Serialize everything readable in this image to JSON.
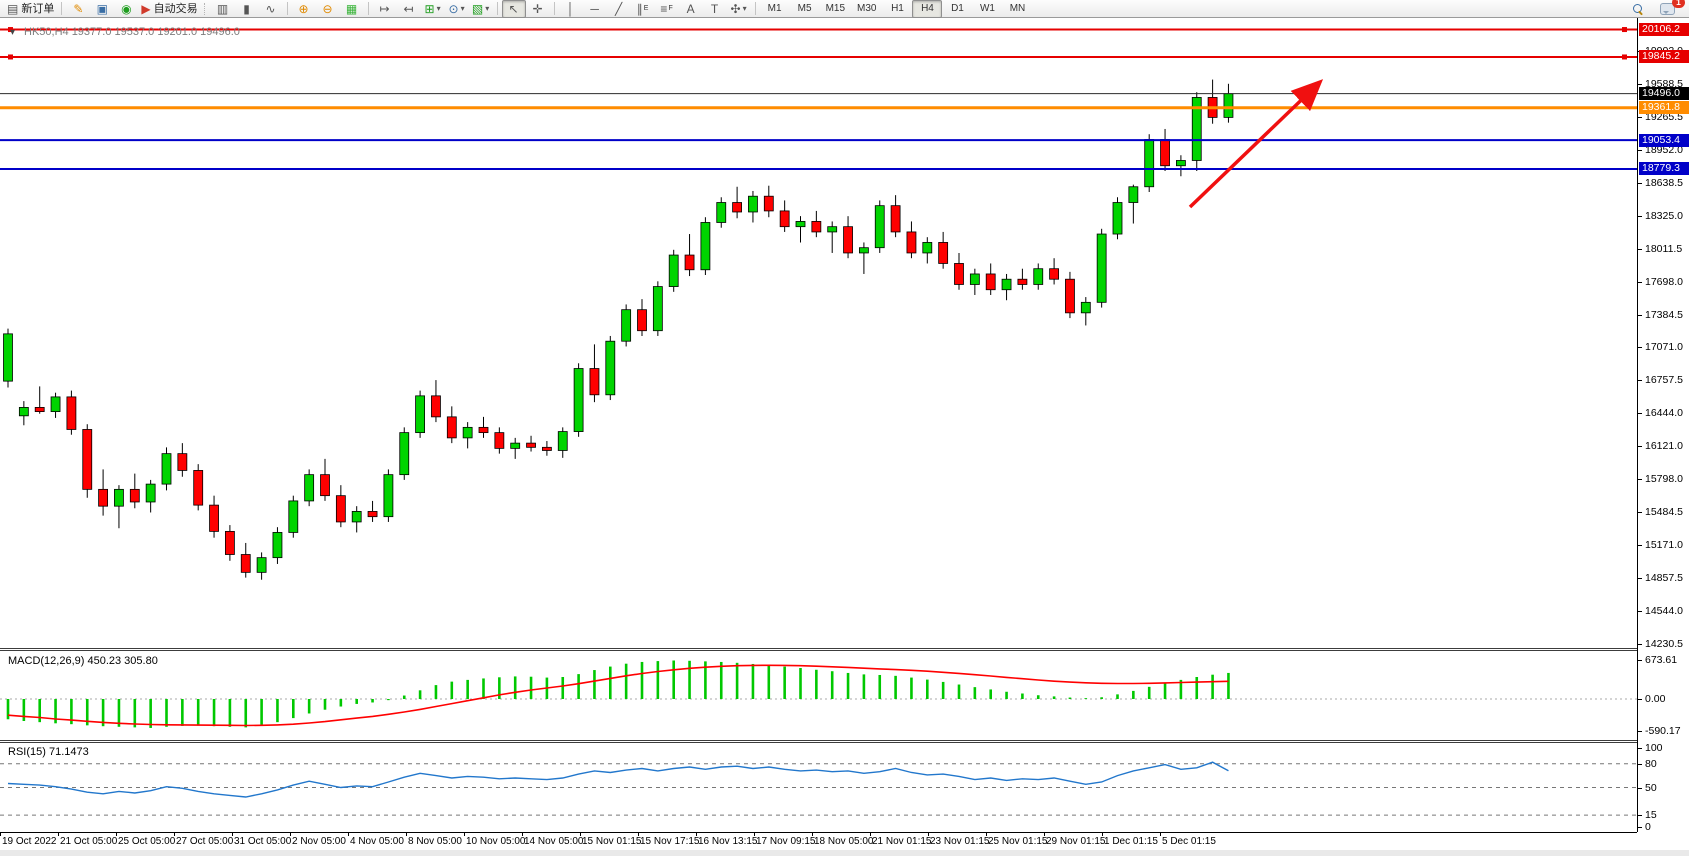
{
  "toolbar": {
    "new_order": "新订单",
    "auto_trading": "自动交易",
    "timeframes": [
      "M1",
      "M5",
      "M15",
      "M30",
      "H1",
      "H4",
      "D1",
      "W1",
      "MN"
    ],
    "active_timeframe": "H4",
    "notification_count": "1"
  },
  "icons": {
    "new_order": "▤",
    "pencil": "✎",
    "profile": "▣",
    "signal": "◉",
    "autotrade": "▶",
    "chart_bars": "▥",
    "chart_candles": "▮",
    "chart_line": "∿",
    "zoom_in": "⊕",
    "zoom_out": "⊖",
    "tile_windows": "▦",
    "shift_left": "↤",
    "shift_right": "↦",
    "indicators": "⊞",
    "clock": "⊙",
    "template": "▧",
    "cursor": "↖",
    "crosshair": "✛",
    "vline": "│",
    "hline": "─",
    "trendline": "╱",
    "channel": "∥",
    "channel_sub": "E",
    "fibo": "≡",
    "fibo_sub": "F",
    "text": "A",
    "label": "T",
    "arrows": "✣",
    "caret": "▾",
    "symbol_marker": "▾"
  },
  "chart": {
    "title": "HK50,H4 19377.0 19537.0 19201.0 19496.0",
    "symbol": "HK50",
    "period": "H4",
    "open": "19377.0",
    "high": "19537.0",
    "low": "19201.0",
    "close": "19496.0",
    "colors": {
      "bull": "#00d400",
      "bear": "#ff0000",
      "outline": "#000000",
      "red_line": "#e60000",
      "orange_line": "#ff8c00",
      "blue_line": "#0000c8",
      "bid_line": "#2b2b2b",
      "arrow": "#f01010",
      "macd_hist": "#00c800",
      "macd_signal": "#ff0000",
      "rsi_line": "#2277cc"
    },
    "price_axis_ticks": [
      "19902.0",
      "19588.5",
      "19265.5",
      "18952.0",
      "18638.5",
      "18325.0",
      "18011.5",
      "17698.0",
      "17384.5",
      "17071.0",
      "16757.5",
      "16444.0",
      "16121.0",
      "15798.0",
      "15484.5",
      "15171.0",
      "14857.5",
      "14544.0",
      "14230.5"
    ],
    "badges": [
      {
        "value": "20106.2",
        "price": 20106.2,
        "bg": "#e60000"
      },
      {
        "value": "19845.2",
        "price": 19845.2,
        "bg": "#e60000"
      },
      {
        "value": "19496.0",
        "price": 19496.0,
        "bg": "#000000"
      },
      {
        "value": "19361.8",
        "price": 19361.8,
        "bg": "#ff8c00"
      },
      {
        "value": "19053.4",
        "price": 19053.4,
        "bg": "#0000c8"
      },
      {
        "value": "18779.3",
        "price": 18779.3,
        "bg": "#0000c8"
      }
    ],
    "hlines": [
      {
        "price": 20106.2,
        "color": "#e60000",
        "width": 2,
        "handles": true
      },
      {
        "price": 19845.2,
        "color": "#e60000",
        "width": 2,
        "handles": true
      },
      {
        "price": 19496.0,
        "color": "#2b2b2b",
        "width": 1,
        "handles": false
      },
      {
        "price": 19361.8,
        "color": "#ff8c00",
        "width": 3,
        "handles": false
      },
      {
        "price": 19053.4,
        "color": "#0000c8",
        "width": 2,
        "handles": false
      },
      {
        "price": 18779.3,
        "color": "#0000c8",
        "width": 2,
        "handles": false
      }
    ]
  },
  "macd": {
    "label": "MACD(12,26,9) 450.23 305.80",
    "axis": [
      "673.61",
      "0.00",
      "-590.17"
    ]
  },
  "rsi": {
    "label": "RSI(15) 71.1473",
    "axis": [
      "100",
      "80",
      "50",
      "15",
      "0"
    ],
    "levels": [
      80,
      50,
      15
    ]
  },
  "time_axis": [
    "19 Oct 2022",
    "21 Oct 05:00",
    "25 Oct 05:00",
    "27 Oct 05:00",
    "31 Oct 05:00",
    "2 Nov 05:00",
    "4 Nov 05:00",
    "8 Nov 05:00",
    "10 Nov 05:00",
    "14 Nov 05:00",
    "15 Nov 01:15",
    "15 Nov 17:15",
    "16 Nov 13:15",
    "17 Nov 09:15",
    "18 Nov 05:00",
    "21 Nov 01:15",
    "23 Nov 01:15",
    "25 Nov 01:15",
    "29 Nov 01:15",
    "1 Dec 01:15",
    "5 Dec 01:15"
  ],
  "chart_data": [
    {
      "type": "candlestick",
      "title": "HK50,H4",
      "ylabel": "price",
      "ylim": [
        14181,
        20221
      ],
      "yticks": [
        19902.0,
        19588.5,
        19265.5,
        18952.0,
        18638.5,
        18325.0,
        18011.5,
        17698.0,
        17384.5,
        17071.0,
        16757.5,
        16444.0,
        16121.0,
        15798.0,
        15484.5,
        15171.0,
        14857.5,
        14544.0,
        14230.5
      ],
      "hlines": [
        20106.2,
        19845.2,
        19496.0,
        19361.8,
        19053.4,
        18779.3
      ],
      "annotation": "red up-trend arrow toward 19845 resistance",
      "ohlc": [
        [
          16760,
          17260,
          16700,
          17210
        ],
        [
          16430,
          16570,
          16340,
          16510
        ],
        [
          16510,
          16710,
          16450,
          16470
        ],
        [
          16470,
          16650,
          16410,
          16610
        ],
        [
          16610,
          16670,
          16250,
          16300
        ],
        [
          16300,
          16350,
          15650,
          15730
        ],
        [
          15730,
          15920,
          15480,
          15570
        ],
        [
          15570,
          15770,
          15360,
          15730
        ],
        [
          15730,
          15880,
          15550,
          15610
        ],
        [
          15610,
          15820,
          15510,
          15780
        ],
        [
          15780,
          16130,
          15720,
          16070
        ],
        [
          16070,
          16170,
          15850,
          15910
        ],
        [
          15910,
          15970,
          15530,
          15580
        ],
        [
          15580,
          15670,
          15270,
          15330
        ],
        [
          15330,
          15390,
          15050,
          15110
        ],
        [
          15110,
          15220,
          14890,
          14940
        ],
        [
          14940,
          15130,
          14870,
          15080
        ],
        [
          15080,
          15370,
          15020,
          15320
        ],
        [
          15320,
          15670,
          15270,
          15620
        ],
        [
          15620,
          15920,
          15570,
          15870
        ],
        [
          15870,
          16020,
          15620,
          15670
        ],
        [
          15670,
          15770,
          15370,
          15420
        ],
        [
          15420,
          15570,
          15320,
          15520
        ],
        [
          15520,
          15620,
          15420,
          15470
        ],
        [
          15470,
          15920,
          15420,
          15870
        ],
        [
          15870,
          16320,
          15820,
          16270
        ],
        [
          16270,
          16670,
          16220,
          16620
        ],
        [
          16620,
          16770,
          16370,
          16420
        ],
        [
          16420,
          16520,
          16170,
          16220
        ],
        [
          16220,
          16370,
          16120,
          16320
        ],
        [
          16320,
          16420,
          16220,
          16270
        ],
        [
          16270,
          16320,
          16070,
          16120
        ],
        [
          16120,
          16220,
          16020,
          16170
        ],
        [
          16170,
          16240,
          16090,
          16130
        ],
        [
          16130,
          16190,
          16050,
          16100
        ],
        [
          16100,
          16320,
          16030,
          16280
        ],
        [
          16280,
          16930,
          16230,
          16880
        ],
        [
          16880,
          17110,
          16560,
          16630
        ],
        [
          16630,
          17190,
          16580,
          17140
        ],
        [
          17140,
          17490,
          17090,
          17440
        ],
        [
          17440,
          17540,
          17190,
          17240
        ],
        [
          17240,
          17710,
          17190,
          17660
        ],
        [
          17660,
          18010,
          17610,
          17960
        ],
        [
          17960,
          18160,
          17760,
          17820
        ],
        [
          17820,
          18320,
          17770,
          18270
        ],
        [
          18270,
          18510,
          18220,
          18460
        ],
        [
          18460,
          18610,
          18310,
          18370
        ],
        [
          18370,
          18570,
          18270,
          18520
        ],
        [
          18520,
          18620,
          18320,
          18380
        ],
        [
          18380,
          18480,
          18180,
          18230
        ],
        [
          18230,
          18330,
          18080,
          18280
        ],
        [
          18280,
          18380,
          18130,
          18180
        ],
        [
          18180,
          18280,
          17980,
          18230
        ],
        [
          18230,
          18330,
          17930,
          17980
        ],
        [
          17980,
          18080,
          17780,
          18030
        ],
        [
          18030,
          18480,
          17980,
          18430
        ],
        [
          18430,
          18530,
          18130,
          18180
        ],
        [
          18180,
          18280,
          17930,
          17980
        ],
        [
          17980,
          18130,
          17880,
          18080
        ],
        [
          18080,
          18180,
          17830,
          17880
        ],
        [
          17880,
          17980,
          17630,
          17680
        ],
        [
          17680,
          17830,
          17580,
          17780
        ],
        [
          17780,
          17880,
          17580,
          17630
        ],
        [
          17630,
          17780,
          17530,
          17730
        ],
        [
          17730,
          17830,
          17630,
          17680
        ],
        [
          17680,
          17880,
          17630,
          17830
        ],
        [
          17830,
          17930,
          17680,
          17730
        ],
        [
          17730,
          17800,
          17360,
          17410
        ],
        [
          17410,
          17560,
          17290,
          17510
        ],
        [
          17510,
          18210,
          17460,
          18160
        ],
        [
          18160,
          18510,
          18110,
          18460
        ],
        [
          18460,
          18630,
          18260,
          18610
        ],
        [
          18610,
          19110,
          18560,
          19060
        ],
        [
          19060,
          19160,
          18760,
          18810
        ],
        [
          18810,
          18910,
          18710,
          18860
        ],
        [
          18860,
          19510,
          18760,
          19460
        ],
        [
          19460,
          19630,
          19210,
          19270
        ],
        [
          19270,
          19590,
          19220,
          19496
        ]
      ]
    },
    {
      "type": "bar",
      "title": "MACD(12,26,9)",
      "current_macd": 450.23,
      "current_signal": 305.8,
      "ylim": [
        -700,
        760
      ],
      "yticks": [
        673.61,
        0.0,
        -590.17
      ],
      "values": [
        -350,
        -380,
        -400,
        -420,
        -435,
        -455,
        -470,
        -480,
        -490,
        -500,
        -480,
        -465,
        -460,
        -470,
        -480,
        -490,
        -450,
        -400,
        -330,
        -250,
        -185,
        -130,
        -85,
        -60,
        -20,
        60,
        150,
        240,
        300,
        330,
        355,
        375,
        390,
        385,
        370,
        380,
        430,
        500,
        560,
        610,
        640,
        655,
        665,
        660,
        650,
        640,
        625,
        605,
        585,
        560,
        535,
        505,
        480,
        450,
        425,
        415,
        400,
        370,
        335,
        295,
        250,
        205,
        165,
        125,
        95,
        65,
        45,
        25,
        15,
        30,
        80,
        140,
        210,
        280,
        330,
        380,
        420,
        450.23
      ],
      "signal": [
        -280,
        -300,
        -320,
        -345,
        -365,
        -385,
        -405,
        -420,
        -432,
        -440,
        -445,
        -448,
        -450,
        -452,
        -455,
        -458,
        -455,
        -448,
        -435,
        -415,
        -390,
        -360,
        -330,
        -300,
        -265,
        -225,
        -180,
        -130,
        -80,
        -30,
        20,
        70,
        115,
        155,
        190,
        225,
        265,
        310,
        355,
        400,
        440,
        475,
        505,
        530,
        550,
        565,
        575,
        580,
        582,
        580,
        575,
        567,
        557,
        545,
        532,
        520,
        508,
        495,
        480,
        462,
        442,
        420,
        397,
        373,
        350,
        328,
        308,
        292,
        280,
        272,
        268,
        268,
        272,
        278,
        285,
        292,
        299,
        305.8
      ]
    },
    {
      "type": "line",
      "title": "RSI(15)",
      "current": 71.1473,
      "ylim": [
        0,
        100
      ],
      "levels": [
        80,
        50,
        15
      ],
      "values": [
        55,
        54,
        53,
        51,
        48,
        44,
        42,
        45,
        43,
        46,
        51,
        49,
        45,
        42,
        40,
        38,
        42,
        47,
        53,
        58,
        54,
        50,
        52,
        51,
        57,
        63,
        68,
        65,
        62,
        64,
        63,
        61,
        62,
        61,
        60,
        62,
        67,
        71,
        69,
        72,
        74,
        71,
        74,
        76,
        73,
        76,
        77,
        74,
        76,
        73,
        71,
        72,
        70,
        71,
        68,
        70,
        74,
        69,
        66,
        67,
        64,
        60,
        62,
        59,
        61,
        60,
        62,
        58,
        54,
        57,
        65,
        71,
        75,
        79,
        73,
        75,
        82,
        71.1473
      ]
    }
  ]
}
